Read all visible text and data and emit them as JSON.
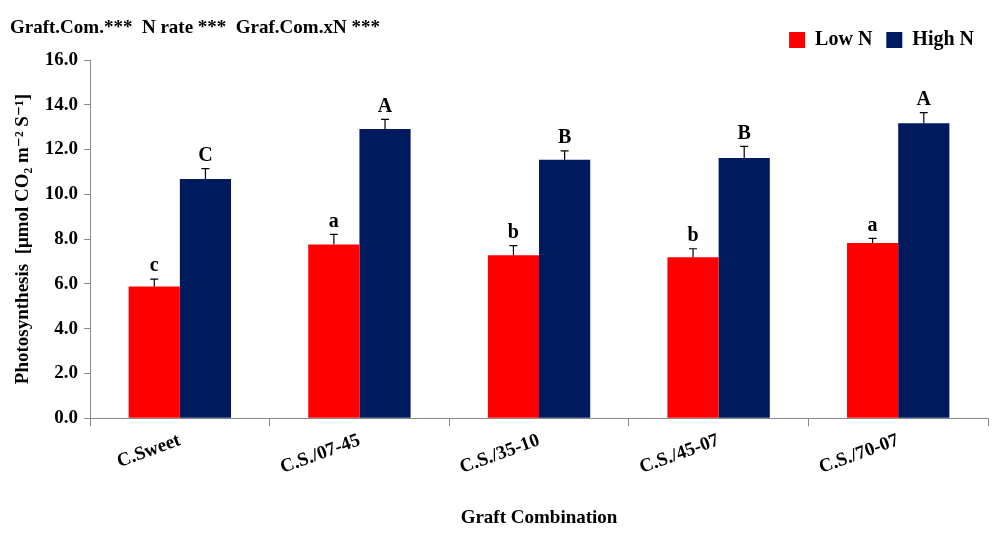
{
  "chart_data": {
    "type": "bar",
    "title": "Graft.Com.***  N rate ***  Graf.Com.xN ***",
    "xlabel": "Graft Combination",
    "ylabel": "Photosynthesis  [μmol CO₂ m⁻² S⁻¹]",
    "categories": [
      "C.Sweet",
      "C.S./07-45",
      "C.S./35-10",
      "C.S./45-07",
      "C.S./70-07"
    ],
    "series": [
      {
        "name": "Low N",
        "color": "#ff0000",
        "values": [
          5.88,
          7.76,
          7.28,
          7.19,
          7.83
        ],
        "errors": [
          0.33,
          0.45,
          0.43,
          0.38,
          0.2
        ],
        "value_labels": [
          "c",
          "a",
          "b",
          "b",
          "a"
        ]
      },
      {
        "name": "High N",
        "color": "#001a5e",
        "values": [
          10.69,
          12.92,
          11.54,
          11.62,
          13.18
        ],
        "errors": [
          0.46,
          0.43,
          0.4,
          0.52,
          0.47
        ],
        "value_labels": [
          "C",
          "A",
          "B",
          "B",
          "A"
        ]
      }
    ],
    "ylim": [
      0,
      16
    ],
    "yticks": [
      {
        "value": 0,
        "label": "0.0"
      },
      {
        "value": 2,
        "label": "2.0"
      },
      {
        "value": 4,
        "label": "4.0"
      },
      {
        "value": 6,
        "label": "6.0"
      },
      {
        "value": 8,
        "label": "8.0"
      },
      {
        "value": 10,
        "label": "10.0"
      },
      {
        "value": 12,
        "label": "12.0"
      },
      {
        "value": 14,
        "label": "14.0"
      },
      {
        "value": 16,
        "label": "16.0"
      }
    ],
    "grid": false,
    "legend": "top right"
  }
}
